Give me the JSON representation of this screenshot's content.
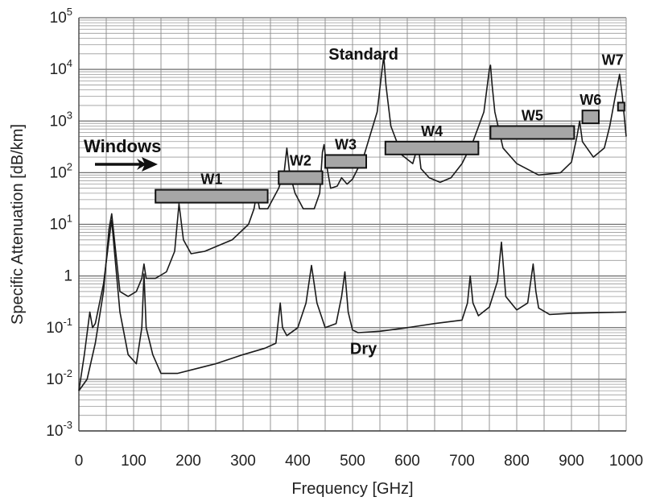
{
  "chart_data": {
    "type": "line",
    "xlabel": "Frequency [GHz]",
    "ylabel": "Specific Attenuation [dB/km]",
    "x_range": [
      0,
      1000
    ],
    "y_range": [
      0.001,
      100000
    ],
    "y_scale": "log",
    "grid": true,
    "x_ticks": [
      0,
      100,
      200,
      300,
      400,
      500,
      600,
      700,
      800,
      900,
      1000
    ],
    "y_ticks": [
      {
        "base": "10",
        "exp": "5",
        "value": 100000
      },
      {
        "base": "10",
        "exp": "4",
        "value": 10000
      },
      {
        "base": "10",
        "exp": "3",
        "value": 1000
      },
      {
        "base": "10",
        "exp": "2",
        "value": 100
      },
      {
        "base": "10",
        "exp": "1",
        "value": 10
      },
      {
        "base": "1",
        "exp": "",
        "value": 1
      },
      {
        "base": "10",
        "exp": "-1",
        "value": 0.1
      },
      {
        "base": "10",
        "exp": "-2",
        "value": 0.01
      },
      {
        "base": "10",
        "exp": "-3",
        "value": 0.001
      }
    ],
    "series": [
      {
        "name": "Standard",
        "label_at": [
          520,
          20000
        ],
        "x": [
          0,
          15,
          30,
          45,
          55,
          60,
          65,
          75,
          90,
          105,
          115,
          119,
          123,
          140,
          160,
          175,
          183,
          191,
          205,
          230,
          280,
          310,
          320,
          325,
          330,
          345,
          365,
          375,
          380,
          385,
          395,
          410,
          430,
          440,
          445,
          448,
          452,
          460,
          472,
          480,
          490,
          500,
          520,
          545,
          553,
          557,
          561,
          570,
          590,
          610,
          620,
          625,
          640,
          660,
          680,
          700,
          720,
          740,
          750,
          752,
          755,
          760,
          775,
          800,
          840,
          880,
          900,
          910,
          915,
          920,
          940,
          960,
          970,
          980,
          988,
          993,
          1000
        ],
        "y": [
          0.006,
          0.01,
          0.05,
          0.5,
          8,
          16,
          5,
          0.5,
          0.4,
          0.5,
          0.9,
          1.7,
          0.9,
          0.9,
          1.2,
          3,
          25,
          5,
          2.7,
          3,
          5,
          10,
          20,
          40,
          20,
          20,
          50,
          100,
          300,
          100,
          40,
          20,
          20,
          40,
          250,
          350,
          150,
          50,
          55,
          80,
          60,
          75,
          200,
          1500,
          8000,
          18000,
          5000,
          800,
          220,
          150,
          350,
          120,
          80,
          65,
          80,
          150,
          400,
          1500,
          10000,
          12000,
          5000,
          1500,
          300,
          150,
          90,
          100,
          160,
          500,
          1000,
          400,
          200,
          300,
          800,
          3000,
          8000,
          3000,
          500
        ]
      },
      {
        "name": "Dry",
        "label_at": [
          520,
          0.04
        ],
        "x": [
          0,
          10,
          20,
          25,
          30,
          45,
          55,
          60,
          65,
          75,
          90,
          105,
          115,
          119,
          123,
          135,
          150,
          180,
          250,
          300,
          340,
          360,
          368,
          372,
          380,
          400,
          415,
          425,
          435,
          450,
          470,
          480,
          486,
          492,
          500,
          510,
          550,
          600,
          650,
          700,
          710,
          715,
          720,
          730,
          750,
          765,
          772,
          780,
          800,
          820,
          830,
          835,
          840,
          860,
          900,
          1000
        ],
        "y": [
          0.006,
          0.03,
          0.2,
          0.1,
          0.12,
          0.7,
          5,
          12,
          3,
          0.2,
          0.03,
          0.02,
          0.1,
          1.1,
          0.1,
          0.03,
          0.013,
          0.013,
          0.02,
          0.03,
          0.04,
          0.05,
          0.3,
          0.1,
          0.07,
          0.1,
          0.3,
          1.6,
          0.3,
          0.1,
          0.12,
          0.4,
          1.2,
          0.2,
          0.09,
          0.08,
          0.085,
          0.1,
          0.12,
          0.14,
          0.3,
          1,
          0.3,
          0.17,
          0.25,
          0.8,
          4.5,
          0.4,
          0.22,
          0.3,
          1.7,
          0.5,
          0.24,
          0.18,
          0.19,
          0.2
        ]
      }
    ],
    "windows": [
      {
        "label": "W1",
        "x0": 140,
        "x1": 345,
        "y": 35
      },
      {
        "label": "W2",
        "x0": 365,
        "x1": 445,
        "y": 80
      },
      {
        "label": "W3",
        "x0": 450,
        "x1": 525,
        "y": 165
      },
      {
        "label": "W4",
        "x0": 560,
        "x1": 730,
        "y": 300
      },
      {
        "label": "W5",
        "x0": 752,
        "x1": 905,
        "y": 600
      },
      {
        "label": "W6",
        "x0": 920,
        "x1": 950,
        "y": 1200
      },
      {
        "label": "W7",
        "x0": 985,
        "x1": 995,
        "y": 1900
      }
    ],
    "annotation": {
      "text": "Windows",
      "x": 0,
      "y": 200
    }
  }
}
